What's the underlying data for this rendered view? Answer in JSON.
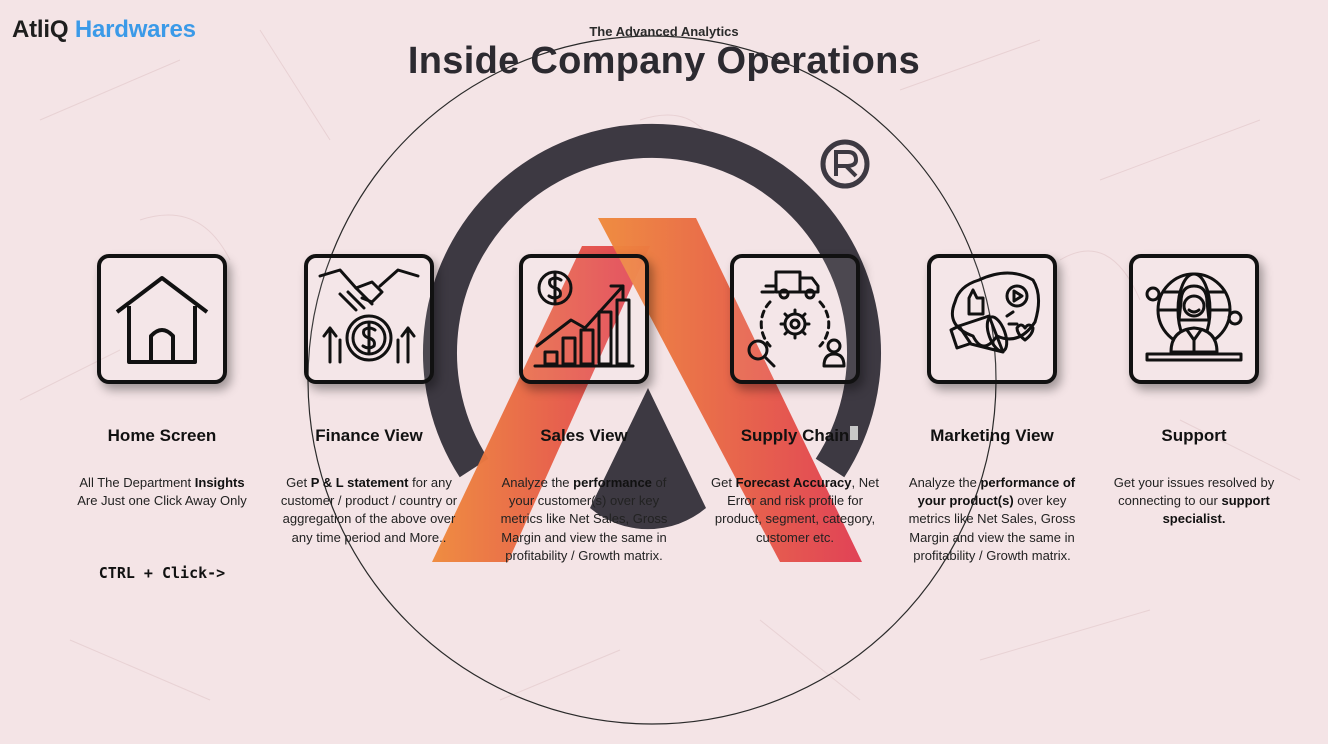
{
  "brand": {
    "part1": "AtliQ",
    "part2": "Hardwares"
  },
  "header": {
    "subtitle": "The Advanced Analytics",
    "title": "Inside Company Operations"
  },
  "colors": {
    "accent_blue": "#3b9ae8",
    "logo_dark": "#3d3942",
    "logo_orange": "#ef8a3c",
    "logo_red": "#e03d52"
  },
  "cards": [
    {
      "icon": "home-icon",
      "title": "Home Screen",
      "desc_parts": [
        {
          "t": "All The Department ",
          "b": false
        },
        {
          "t": "Insights",
          "b": true
        },
        {
          "t": " Are Just one Click Away Only",
          "b": false
        }
      ],
      "extra": "CTRL + Click->"
    },
    {
      "icon": "finance-handshake-icon",
      "title": "Finance View",
      "desc_parts": [
        {
          "t": "Get  ",
          "b": false
        },
        {
          "t": "P & L statement",
          "b": true
        },
        {
          "t": " for any customer / product / country or aggregation of the above over any time period and More..",
          "b": false
        }
      ]
    },
    {
      "icon": "sales-chart-icon",
      "title": "Sales View",
      "desc_parts": [
        {
          "t": "Analyze the ",
          "b": false
        },
        {
          "t": "performance",
          "b": true
        },
        {
          "t": " of your customer(s) over key metrics like Net Sales, Gross Margin and view the same in profitability / Growth matrix.",
          "b": false
        }
      ]
    },
    {
      "icon": "supply-chain-icon",
      "title": "Supply Chain",
      "desc_parts": [
        {
          "t": "Get ",
          "b": false
        },
        {
          "t": "Forecast Accuracy",
          "b": true
        },
        {
          "t": ", Net Error and risk profile for product, segment, category, customer etc.",
          "b": false
        }
      ]
    },
    {
      "icon": "marketing-megaphone-icon",
      "title": "Marketing View",
      "desc_parts": [
        {
          "t": "Analyze the ",
          "b": false
        },
        {
          "t": "performance of your product(s)",
          "b": true
        },
        {
          "t": " over key metrics like Net Sales, Gross Margin and view the same in profitability / Growth matrix.",
          "b": false
        }
      ]
    },
    {
      "icon": "support-agent-icon",
      "title": "Support",
      "desc_parts": [
        {
          "t": "Get your issues resolved by connecting to our ",
          "b": false
        },
        {
          "t": "support specialist.",
          "b": true
        }
      ]
    }
  ]
}
